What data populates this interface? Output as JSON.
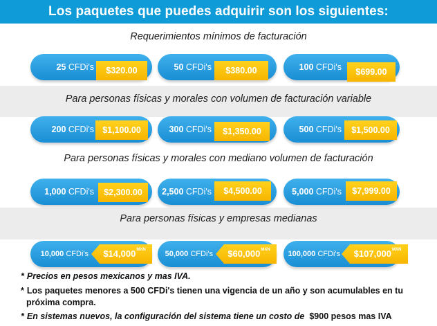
{
  "header": {
    "title": "Los paquetes que puedes adquirir son los siguientes:"
  },
  "sections": [
    {
      "title": "Requerimientos mínimos de facturación",
      "packages": [
        {
          "qty": "25",
          "unit": "CFDi's",
          "price": "$320.00"
        },
        {
          "qty": "50",
          "unit": "CFDi's",
          "price": "$380.00"
        },
        {
          "qty": "100",
          "unit": "CFDi's",
          "price": "$699.00"
        }
      ]
    },
    {
      "title": "Para personas físicas y morales con volumen de facturación variable",
      "packages": [
        {
          "qty": "200",
          "unit": "CFDi's",
          "price": "$1,100.00"
        },
        {
          "qty": "300",
          "unit": "CFDi's",
          "price": "$1,350.00"
        },
        {
          "qty": "500",
          "unit": "CFDi's",
          "price": "$1,500.00"
        }
      ]
    },
    {
      "title": "Para personas físicas y morales con mediano volumen de facturación",
      "packages": [
        {
          "qty": "1,000",
          "unit": "CFDi's",
          "price": "$2,300.00"
        },
        {
          "qty": "2,500",
          "unit": "CFDi's",
          "price": "$4,500.00"
        },
        {
          "qty": "5,000",
          "unit": "CFDi's",
          "price": "$7,999.00"
        }
      ]
    },
    {
      "title": "Para personas físicas y empresas medianas",
      "packages": [
        {
          "qty": "10,000",
          "unit": "CFDi's",
          "price": "$14,000",
          "currency": "MXN"
        },
        {
          "qty": "50,000",
          "unit": "CFDi's",
          "price": "$60,000",
          "currency": "MXN"
        },
        {
          "qty": "100,000",
          "unit": "CFDi's",
          "price": "$107,000",
          "currency": "MXN"
        }
      ]
    }
  ],
  "notes": [
    {
      "bullet": "*",
      "text": "Precios en pesos mexicanos y mas IVA."
    },
    {
      "bullet": "*",
      "text": "Los paquetes menores a 500 CFDi's tienen una vigencia de un año y son acumulables en tu"
    },
    {
      "bullet": "",
      "text": "próxima compra."
    },
    {
      "bullet": "*",
      "text": "En sistemas nuevos, la configuración del sistema tiene un costo de",
      "extra": "$900 pesos mas IVA"
    }
  ],
  "colors": {
    "header_bg": "#0f9bd8",
    "pill_blue": "#1a8ed4",
    "price_yellow": "#ffc20e",
    "band_gray": "#ececec"
  }
}
